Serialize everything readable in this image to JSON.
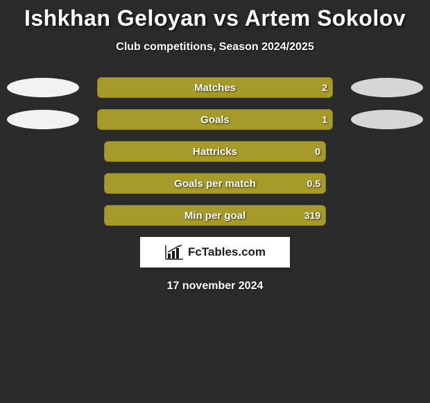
{
  "title": "Ishkhan Geloyan vs Artem Sokolov",
  "subtitle": "Club competitions, Season 2024/2025",
  "date": "17 november 2024",
  "logo_text": "FcTables.com",
  "colors": {
    "background": "#2a2a2a",
    "bar_fill": "#a69a2a",
    "bar_border": "#8a7f1f",
    "ellipse_light": "#f2f2f2",
    "ellipse_dark": "#d6d6d6",
    "text": "#ffffff"
  },
  "stats": [
    {
      "label": "Matches",
      "left_value": "",
      "right_value": "2",
      "left_fill_pct": 0,
      "right_fill_pct": 100,
      "show_ellipses": true,
      "ellipse_left_color": "#f2f2f2",
      "ellipse_right_color": "#d6d6d6"
    },
    {
      "label": "Goals",
      "left_value": "",
      "right_value": "1",
      "left_fill_pct": 0,
      "right_fill_pct": 100,
      "show_ellipses": true,
      "ellipse_left_color": "#f2f2f2",
      "ellipse_right_color": "#d6d6d6"
    },
    {
      "label": "Hattricks",
      "left_value": "",
      "right_value": "0",
      "left_fill_pct": 0,
      "right_fill_pct": 100,
      "show_ellipses": false
    },
    {
      "label": "Goals per match",
      "left_value": "",
      "right_value": "0.5",
      "left_fill_pct": 0,
      "right_fill_pct": 100,
      "show_ellipses": false
    },
    {
      "label": "Min per goal",
      "left_value": "",
      "right_value": "319",
      "left_fill_pct": 0,
      "right_fill_pct": 100,
      "show_ellipses": false
    }
  ]
}
